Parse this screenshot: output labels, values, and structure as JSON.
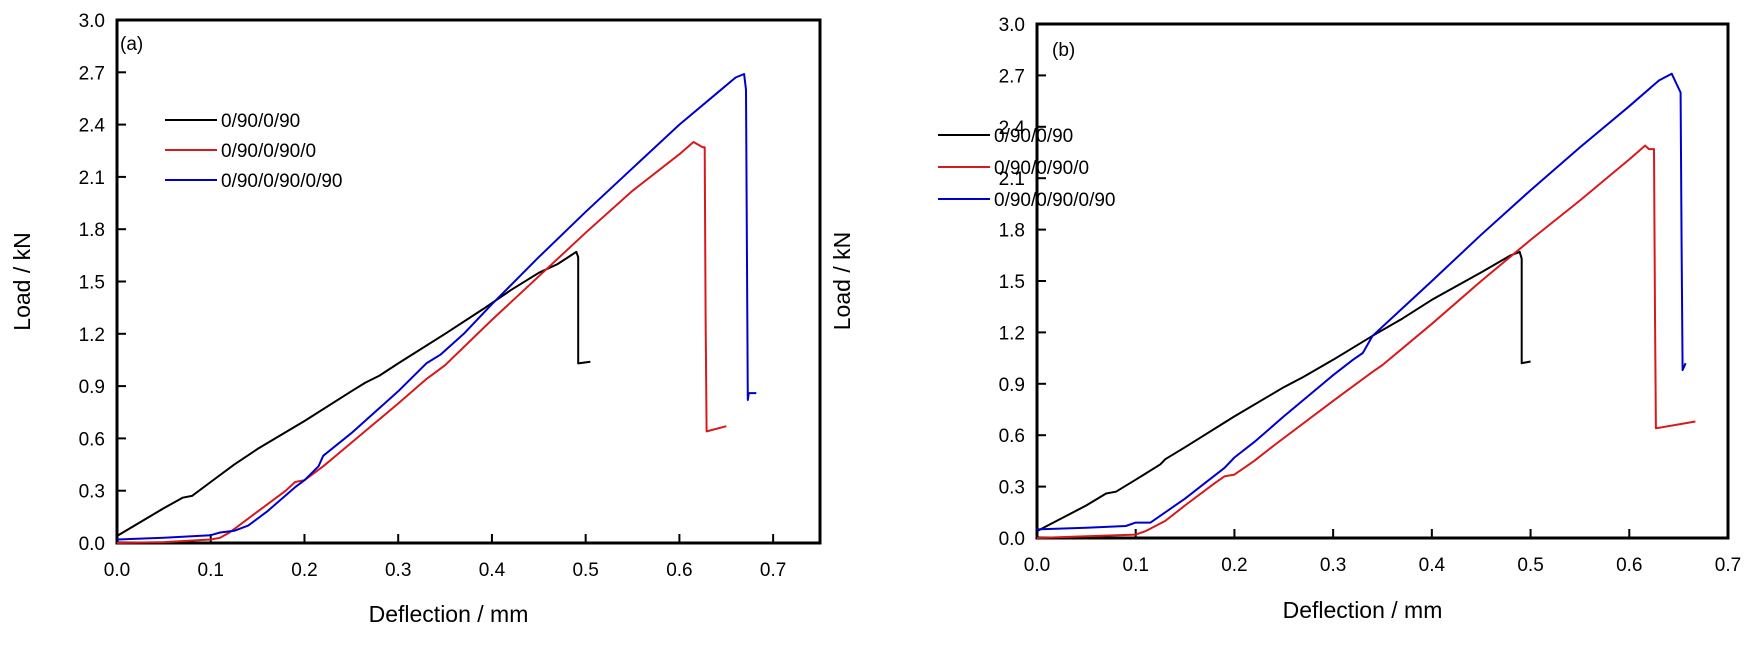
{
  "chart_data": [
    {
      "type": "line",
      "panel_label": "(a)",
      "xlabel": "Deflection / mm",
      "ylabel": "Load / kN",
      "xlim": [
        0,
        0.75
      ],
      "ylim": [
        0,
        3.0
      ],
      "xticks": [
        0.0,
        0.1,
        0.2,
        0.3,
        0.4,
        0.5,
        0.6,
        0.7
      ],
      "xtick_labels": [
        "0.0",
        "0.1",
        "0.2",
        "0.3",
        "0.4",
        "0.5",
        "0.6",
        "0.7"
      ],
      "yticks": [
        0.0,
        0.3,
        0.6,
        0.9,
        1.2,
        1.5,
        1.8,
        2.1,
        2.4,
        2.7,
        3.0
      ],
      "ytick_labels": [
        "0.0",
        "0.3",
        "0.6",
        "0.9",
        "1.2",
        "1.5",
        "1.8",
        "2.1",
        "2.4",
        "2.7",
        "3.0"
      ],
      "grid": false,
      "legend_position": "upper-left",
      "series": [
        {
          "name": "0/90/0/90",
          "color": "#000000",
          "points": [
            [
              0.0,
              0.04
            ],
            [
              0.05,
              0.2
            ],
            [
              0.07,
              0.26
            ],
            [
              0.08,
              0.27
            ],
            [
              0.1,
              0.35
            ],
            [
              0.125,
              0.45
            ],
            [
              0.15,
              0.54
            ],
            [
              0.2,
              0.7
            ],
            [
              0.25,
              0.87
            ],
            [
              0.265,
              0.92
            ],
            [
              0.28,
              0.96
            ],
            [
              0.3,
              1.03
            ],
            [
              0.35,
              1.2
            ],
            [
              0.39,
              1.34
            ],
            [
              0.42,
              1.45
            ],
            [
              0.45,
              1.55
            ],
            [
              0.47,
              1.6
            ],
            [
              0.49,
              1.67
            ],
            [
              0.492,
              1.64
            ],
            [
              0.492,
              1.03
            ],
            [
              0.505,
              1.04
            ]
          ]
        },
        {
          "name": "0/90/0/90/0",
          "color": "#d7191c",
          "points": [
            [
              0.0,
              0.0
            ],
            [
              0.05,
              0.005
            ],
            [
              0.1,
              0.02
            ],
            [
              0.11,
              0.03
            ],
            [
              0.12,
              0.06
            ],
            [
              0.13,
              0.1
            ],
            [
              0.15,
              0.18
            ],
            [
              0.18,
              0.3
            ],
            [
              0.19,
              0.35
            ],
            [
              0.2,
              0.36
            ],
            [
              0.22,
              0.44
            ],
            [
              0.24,
              0.53
            ],
            [
              0.26,
              0.62
            ],
            [
              0.3,
              0.8
            ],
            [
              0.33,
              0.94
            ],
            [
              0.34,
              0.98
            ],
            [
              0.35,
              1.02
            ],
            [
              0.4,
              1.28
            ],
            [
              0.45,
              1.53
            ],
            [
              0.5,
              1.78
            ],
            [
              0.55,
              2.02
            ],
            [
              0.6,
              2.23
            ],
            [
              0.615,
              2.3
            ],
            [
              0.625,
              2.27
            ],
            [
              0.627,
              2.27
            ],
            [
              0.628,
              1.3
            ],
            [
              0.629,
              0.64
            ],
            [
              0.65,
              0.67
            ]
          ]
        },
        {
          "name": "0/90/0/90/0/90",
          "color": "#0000cc",
          "points": [
            [
              0.0,
              0.02
            ],
            [
              0.05,
              0.03
            ],
            [
              0.1,
              0.045
            ],
            [
              0.11,
              0.06
            ],
            [
              0.125,
              0.07
            ],
            [
              0.14,
              0.1
            ],
            [
              0.16,
              0.18
            ],
            [
              0.19,
              0.32
            ],
            [
              0.2,
              0.36
            ],
            [
              0.215,
              0.44
            ],
            [
              0.22,
              0.5
            ],
            [
              0.25,
              0.63
            ],
            [
              0.3,
              0.87
            ],
            [
              0.33,
              1.03
            ],
            [
              0.345,
              1.08
            ],
            [
              0.37,
              1.2
            ],
            [
              0.4,
              1.37
            ],
            [
              0.45,
              1.64
            ],
            [
              0.5,
              1.9
            ],
            [
              0.55,
              2.15
            ],
            [
              0.6,
              2.4
            ],
            [
              0.64,
              2.58
            ],
            [
              0.66,
              2.67
            ],
            [
              0.669,
              2.69
            ],
            [
              0.671,
              2.6
            ],
            [
              0.672,
              1.7
            ],
            [
              0.673,
              0.82
            ],
            [
              0.674,
              0.86
            ],
            [
              0.682,
              0.86
            ]
          ]
        }
      ]
    },
    {
      "type": "line",
      "panel_label": "(b)",
      "xlabel": "Deflection / mm",
      "ylabel": "Load / kN",
      "xlim": [
        0,
        0.7
      ],
      "ylim": [
        0,
        3.0
      ],
      "xticks": [
        0.0,
        0.1,
        0.2,
        0.3,
        0.4,
        0.5,
        0.6,
        0.7
      ],
      "xtick_labels": [
        "0.0",
        "0.1",
        "0.2",
        "0.3",
        "0.4",
        "0.5",
        "0.6",
        "0.7"
      ],
      "yticks": [
        0.0,
        0.3,
        0.6,
        0.9,
        1.2,
        1.5,
        1.8,
        2.1,
        2.4,
        2.7,
        3.0
      ],
      "ytick_labels": [
        "0.0",
        "0.3",
        "0.6",
        "0.9",
        "1.2",
        "1.5",
        "1.8",
        "2.1",
        "2.4",
        "2.7",
        "3.0"
      ],
      "grid": false,
      "legend_position": "upper-left",
      "series": [
        {
          "name": "0/90/0/90",
          "color": "#000000",
          "points": [
            [
              0.0,
              0.04
            ],
            [
              0.05,
              0.19
            ],
            [
              0.07,
              0.26
            ],
            [
              0.08,
              0.27
            ],
            [
              0.1,
              0.34
            ],
            [
              0.125,
              0.43
            ],
            [
              0.13,
              0.46
            ],
            [
              0.15,
              0.53
            ],
            [
              0.2,
              0.71
            ],
            [
              0.25,
              0.88
            ],
            [
              0.27,
              0.94
            ],
            [
              0.3,
              1.04
            ],
            [
              0.34,
              1.18
            ],
            [
              0.37,
              1.28
            ],
            [
              0.4,
              1.39
            ],
            [
              0.45,
              1.55
            ],
            [
              0.48,
              1.65
            ],
            [
              0.489,
              1.67
            ],
            [
              0.491,
              1.63
            ],
            [
              0.491,
              1.02
            ],
            [
              0.5,
              1.03
            ]
          ]
        },
        {
          "name": "0/90/0/90/0",
          "color": "#d7191c",
          "points": [
            [
              0.0,
              0.0
            ],
            [
              0.05,
              0.01
            ],
            [
              0.1,
              0.02
            ],
            [
              0.11,
              0.04
            ],
            [
              0.13,
              0.1
            ],
            [
              0.15,
              0.19
            ],
            [
              0.18,
              0.32
            ],
            [
              0.19,
              0.36
            ],
            [
              0.2,
              0.37
            ],
            [
              0.22,
              0.45
            ],
            [
              0.24,
              0.54
            ],
            [
              0.3,
              0.8
            ],
            [
              0.34,
              0.97
            ],
            [
              0.35,
              1.01
            ],
            [
              0.4,
              1.25
            ],
            [
              0.45,
              1.5
            ],
            [
              0.5,
              1.74
            ],
            [
              0.55,
              1.97
            ],
            [
              0.6,
              2.21
            ],
            [
              0.616,
              2.29
            ],
            [
              0.62,
              2.27
            ],
            [
              0.625,
              2.27
            ],
            [
              0.626,
              1.3
            ],
            [
              0.627,
              0.64
            ],
            [
              0.667,
              0.68
            ]
          ]
        },
        {
          "name": "0/90/0/90/0/90",
          "color": "#0000cc",
          "points": [
            [
              0.0,
              0.05
            ],
            [
              0.05,
              0.06
            ],
            [
              0.09,
              0.07
            ],
            [
              0.1,
              0.09
            ],
            [
              0.115,
              0.09
            ],
            [
              0.13,
              0.15
            ],
            [
              0.15,
              0.23
            ],
            [
              0.17,
              0.32
            ],
            [
              0.19,
              0.41
            ],
            [
              0.2,
              0.47
            ],
            [
              0.22,
              0.56
            ],
            [
              0.25,
              0.71
            ],
            [
              0.3,
              0.95
            ],
            [
              0.32,
              1.04
            ],
            [
              0.33,
              1.08
            ],
            [
              0.34,
              1.18
            ],
            [
              0.4,
              1.5
            ],
            [
              0.45,
              1.77
            ],
            [
              0.5,
              2.03
            ],
            [
              0.55,
              2.28
            ],
            [
              0.6,
              2.52
            ],
            [
              0.63,
              2.67
            ],
            [
              0.643,
              2.71
            ],
            [
              0.652,
              2.6
            ],
            [
              0.653,
              1.7
            ],
            [
              0.654,
              0.98
            ],
            [
              0.657,
              1.02
            ]
          ]
        }
      ]
    }
  ]
}
